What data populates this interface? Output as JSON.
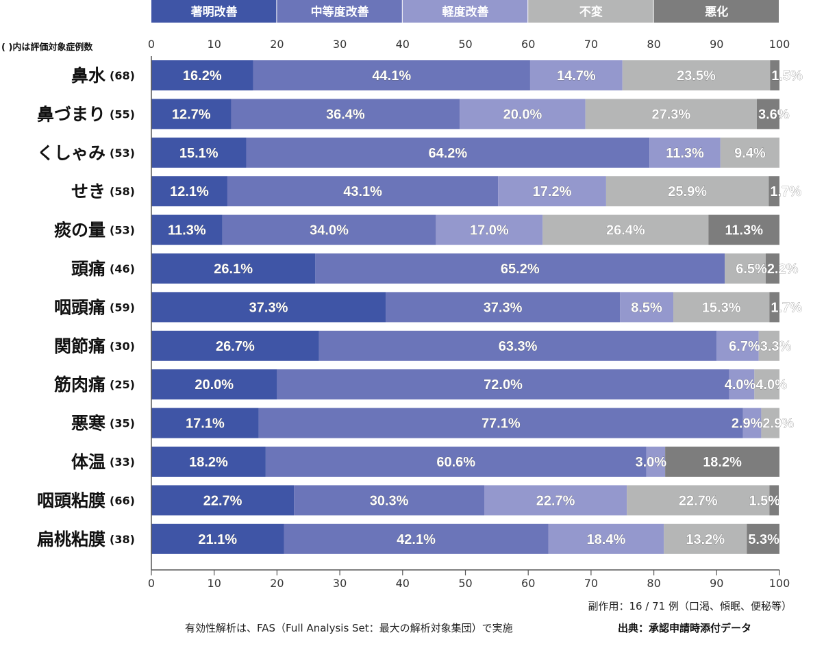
{
  "chart_data": {
    "type": "bar",
    "orientation": "horizontal",
    "stacked": true,
    "categories": [
      "鼻水",
      "鼻づまり",
      "くしゃみ",
      "せき",
      "痰の量",
      "頭痛",
      "咽頭痛",
      "関節痛",
      "筋肉痛",
      "悪寒",
      "体温",
      "咽頭粘膜",
      "扁桃粘膜"
    ],
    "counts": [
      "(68)",
      "(55)",
      "(53)",
      "(58)",
      "(53)",
      "(46)",
      "(59)",
      "(30)",
      "(25)",
      "(35)",
      "(33)",
      "(66)",
      "(38)"
    ],
    "series": [
      {
        "name": "著明改善",
        "color": "#3f55a6",
        "values": [
          16.2,
          12.7,
          15.1,
          12.1,
          11.3,
          26.1,
          37.3,
          26.7,
          20.0,
          17.1,
          18.2,
          22.7,
          21.1
        ]
      },
      {
        "name": "中等度改善",
        "color": "#6b75b9",
        "values": [
          44.1,
          36.4,
          64.2,
          43.1,
          34.0,
          65.2,
          37.3,
          63.3,
          72.0,
          77.1,
          60.6,
          30.3,
          42.1
        ]
      },
      {
        "name": "軽度改善",
        "color": "#9498cd",
        "values": [
          14.7,
          20.0,
          11.3,
          17.2,
          17.0,
          0,
          8.5,
          6.7,
          4.0,
          2.9,
          3.0,
          22.7,
          18.4
        ]
      },
      {
        "name": "不変",
        "color": "#b5b6b6",
        "values": [
          23.5,
          27.3,
          9.4,
          25.9,
          26.4,
          6.5,
          15.3,
          3.3,
          4.0,
          2.9,
          0,
          22.7,
          13.2
        ]
      },
      {
        "name": "悪化",
        "color": "#7d7d7d",
        "values": [
          1.5,
          3.6,
          0,
          1.7,
          11.3,
          2.2,
          1.7,
          0,
          0,
          0,
          18.2,
          1.5,
          5.3
        ]
      }
    ],
    "xlim": [
      0,
      100
    ],
    "xticks": [
      0,
      10,
      20,
      30,
      40,
      50,
      60,
      70,
      80,
      90,
      100
    ],
    "legend_position": "top",
    "grid": false
  },
  "notes": {
    "count_header": "( )内は評価対象症例数",
    "side_effects": "副作用：16 / 71 例（口渇、傾眠、便秘等）",
    "analysis": "有効性解析は、FAS（Full Analysis Set：最大の解析対象集団）で実施",
    "source": "出典：承認申請時添付データ"
  }
}
